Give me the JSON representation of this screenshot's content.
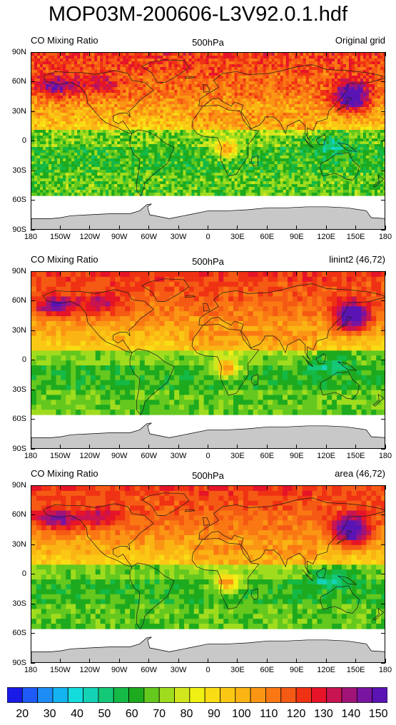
{
  "title": "MOP03M-200606-L3V92.0.1.hdf",
  "panels": [
    {
      "left_label": "CO Mixing Ratio",
      "center_label": "500hPa",
      "right_label": "Original grid",
      "resolution": "fine"
    },
    {
      "left_label": "CO Mixing Ratio",
      "center_label": "500hPa",
      "right_label": "linint2 (46,72)",
      "resolution": "coarse"
    },
    {
      "left_label": "CO Mixing Ratio",
      "center_label": "500hPa",
      "right_label": "area (46,72)",
      "resolution": "coarse"
    }
  ],
  "lat_ticks": [
    "90N",
    "60N",
    "30N",
    "0",
    "30S",
    "60S",
    "90S"
  ],
  "lon_ticks": [
    "180",
    "150W",
    "120W",
    "90W",
    "60W",
    "30W",
    "0",
    "30E",
    "60E",
    "90E",
    "120E",
    "150E",
    "180"
  ],
  "colorbar": {
    "labels": [
      "20",
      "30",
      "40",
      "50",
      "60",
      "70",
      "80",
      "90",
      "100",
      "110",
      "120",
      "130",
      "140",
      "150"
    ],
    "colors": [
      "#1a1ae6",
      "#1e5af5",
      "#1e8cf5",
      "#14b4f0",
      "#14dcdc",
      "#14d2b4",
      "#14c878",
      "#14b946",
      "#1eaa1e",
      "#64c81e",
      "#a0dc1e",
      "#d2e61e",
      "#f0f014",
      "#fadc14",
      "#fac814",
      "#fab414",
      "#fa9614",
      "#fa7814",
      "#f55a14",
      "#f03214",
      "#e61428",
      "#c81450",
      "#a01478",
      "#7814a0",
      "#5a14b4"
    ]
  },
  "land_color": "#c8c8c8"
}
